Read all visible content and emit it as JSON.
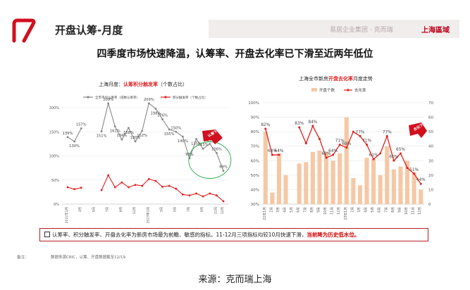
{
  "header": {
    "title": "开盘认筹-月度",
    "brand": "易居企业集团 · 克而瑞",
    "brand_city": "上海區域"
  },
  "main_title": "四季度市场快速降温，认筹率、开盘去化率已下滑至近两年低位",
  "note": {
    "text": "认筹率、积分触发率、开盘去化率为新房市场最为前瞻、敏感的指标。11-12月三项指标均较10月快速下滑，",
    "highlight": "当前降为历史低水位。"
  },
  "footnotes": {
    "remark": "备注：",
    "source": "数据来源CRIC，认筹、开盘数据截至12/19"
  },
  "caption": "来源：克而瑞上海",
  "colors": {
    "grey_line": "#888888",
    "red_line": "#e02020",
    "bar": "#f5c8a5",
    "accent": "#c0001a",
    "circle": "#2ea84a"
  },
  "chart_data": [
    {
      "type": "line",
      "title_prefix": "上海月度：",
      "title_highlight": "认筹积分触发率",
      "title_suffix": "（个数占比）",
      "categories": [
        "2022年1月",
        "2月",
        "3月",
        "4月",
        "5月",
        "6月",
        "7月",
        "8月",
        "9月",
        "10月",
        "11月",
        "12月",
        "2023年1月",
        "2月",
        "3月",
        "4月",
        "5月",
        "6月",
        "7月",
        "8月",
        "9月",
        "10月",
        "11月",
        "12月"
      ],
      "x_tick_labels": [
        "2022年1月",
        "",
        "3月",
        "",
        "5月",
        "",
        "7月",
        "",
        "9月",
        "",
        "11月",
        "",
        "2023年1月",
        "",
        "3月",
        "",
        "5月",
        "",
        "7月",
        "",
        "9月",
        "",
        "11月",
        "12月"
      ],
      "ylim": [
        0,
        200
      ],
      "yticks": [
        0,
        50,
        100,
        150,
        200
      ],
      "ytick_labels": [
        "0%",
        "50%",
        "100%",
        "150%",
        "200%"
      ],
      "grid": true,
      "legend_position": "top",
      "series": [
        {
          "name": "全市平均认筹率（倍数认筹率）",
          "color": "#888888",
          "values": [
            139,
            130,
            157,
            null,
            null,
            151,
            209,
            161,
            134,
            158,
            130,
            152,
            209,
            198,
            176,
            155,
            150,
            140,
            95,
            135,
            115,
            125,
            106,
            69
          ],
          "labels": [
            "139%",
            "130%",
            "157%",
            "",
            "",
            "151%",
            "209%",
            "161%",
            "134%",
            "158%",
            "130%",
            "152%",
            "209%",
            "198%",
            "176%",
            "155%",
            "150%",
            "140%",
            "95%",
            "135%",
            "115%",
            "125%",
            "106%",
            "69%"
          ]
        },
        {
          "name": "积分触发率（个数占比）",
          "color": "#e02020",
          "values": [
            35,
            31,
            34,
            null,
            null,
            29,
            60,
            35,
            45,
            35,
            40,
            38,
            52,
            48,
            36,
            38,
            32,
            20,
            18,
            22,
            16,
            22,
            18,
            6
          ],
          "labels": []
        }
      ],
      "annotation": "认筹下降"
    },
    {
      "type": "bar+line",
      "title_prefix": "上海全市新房",
      "title_highlight": "开盘去化率",
      "title_suffix": "月度走势",
      "categories": [
        "22年1月",
        "2月",
        "3月",
        "4月",
        "5月",
        "6月",
        "7月",
        "8月",
        "9月",
        "10月",
        "11月",
        "12月",
        "23年1月",
        "2月",
        "3月",
        "4月",
        "5月",
        "6月",
        "7月",
        "8月",
        "9月",
        "10月",
        "11月",
        "12月"
      ],
      "x_tick_labels": [
        "22年1月",
        "2月",
        "3月",
        "4月",
        "5月",
        "6月",
        "7月",
        "8月",
        "9月",
        "10月",
        "11月",
        "12月",
        "23年1月",
        "2月",
        "3月",
        "4月",
        "5月",
        "6月",
        "7月",
        "8月",
        "9月",
        "10月",
        "11月",
        "12月"
      ],
      "y_left": {
        "lim": [
          30,
          100
        ],
        "ticks": [
          30,
          40,
          50,
          60,
          70,
          80,
          90,
          100
        ],
        "tick_labels": [
          "30%",
          "40%",
          "50%",
          "60%",
          "70%",
          "80%",
          "90%",
          "100%"
        ]
      },
      "y_right": {
        "lim": [
          0,
          70
        ],
        "ticks": [
          0,
          10,
          20,
          30,
          40,
          50,
          60,
          70
        ],
        "tick_labels": [
          "0",
          "10",
          "20",
          "30",
          "40",
          "50",
          "60",
          "70"
        ]
      },
      "grid": true,
      "legend_position": "top",
      "series": [
        {
          "name": "开盘个数",
          "type": "bar",
          "axis": "right",
          "color": "#f5c8a5",
          "values": [
            50,
            8,
            35,
            20,
            0,
            28,
            29,
            36,
            37,
            36,
            30,
            35,
            60,
            18,
            13,
            32,
            31,
            20,
            40,
            24,
            26,
            30,
            22,
            10
          ]
        },
        {
          "name": "去化率",
          "type": "line",
          "axis": "left",
          "color": "#e02020",
          "values": [
            82,
            64,
            64,
            null,
            null,
            83,
            72,
            84,
            75,
            62,
            64,
            71,
            69,
            80,
            77,
            71,
            61,
            65,
            77,
            60,
            65,
            55,
            51,
            44
          ],
          "labels": [
            "82%",
            "64%",
            "64%",
            "",
            "",
            "83%",
            "",
            "84%",
            "",
            "62%",
            "64%",
            "71%",
            "69%",
            "",
            "77%",
            "71%",
            "61%",
            "",
            "77%",
            "60%",
            "65%",
            "",
            "51%",
            "44%"
          ]
        }
      ],
      "annotation": "去化下降"
    }
  ]
}
